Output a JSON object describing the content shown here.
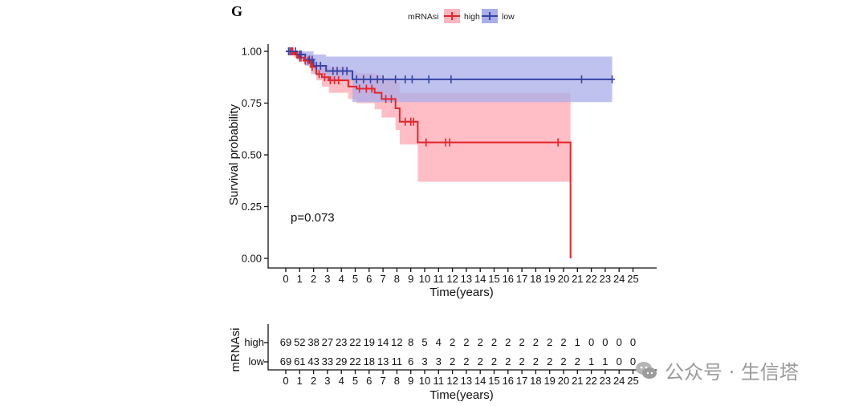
{
  "panel_label": "G",
  "chart_data": {
    "type": "line",
    "subtype": "kaplan-meier",
    "legend_title": "mRNAsi",
    "legend_position": "top-center",
    "xlabel": "Time(years)",
    "ylabel": "Survival probability",
    "xlim": [
      0,
      25
    ],
    "ylim": [
      0,
      1
    ],
    "x_ticks": [
      0,
      1,
      2,
      3,
      4,
      5,
      6,
      7,
      8,
      9,
      10,
      11,
      12,
      13,
      14,
      15,
      16,
      17,
      18,
      19,
      20,
      21,
      22,
      23,
      24,
      25
    ],
    "y_ticks": [
      "0.00",
      "0.25",
      "0.50",
      "0.75",
      "1.00"
    ],
    "annotation": "p=0.073",
    "series": [
      {
        "name": "high",
        "color": "#e3262b",
        "band_color": "#ffb6bf",
        "steps": [
          [
            0,
            1.0
          ],
          [
            0.6,
            0.985
          ],
          [
            0.9,
            0.97
          ],
          [
            1.3,
            0.955
          ],
          [
            1.8,
            0.925
          ],
          [
            2.2,
            0.89
          ],
          [
            2.6,
            0.875
          ],
          [
            3.1,
            0.86
          ],
          [
            4.5,
            0.83
          ],
          [
            5.1,
            0.82
          ],
          [
            6.4,
            0.8
          ],
          [
            6.9,
            0.77
          ],
          [
            7.9,
            0.725
          ],
          [
            8.2,
            0.66
          ],
          [
            9.5,
            0.56
          ],
          [
            20.5,
            0.0
          ]
        ],
        "end": 20.5,
        "censor_times": [
          0.3,
          0.5,
          0.8,
          1.0,
          1.1,
          1.4,
          1.6,
          1.9,
          2.4,
          2.8,
          3.2,
          3.5,
          3.8,
          5.3,
          5.8,
          6.2,
          7.2,
          7.6,
          8.6,
          9.0,
          9.2,
          10.1,
          11.5,
          11.8,
          19.6
        ],
        "ci": [
          [
            0,
            1.0,
            1.0
          ],
          [
            0.6,
            0.97,
            1.0
          ],
          [
            1.3,
            0.94,
            0.985
          ],
          [
            1.8,
            0.89,
            0.97
          ],
          [
            2.2,
            0.86,
            0.945
          ],
          [
            2.6,
            0.83,
            0.935
          ],
          [
            3.1,
            0.8,
            0.925
          ],
          [
            4.5,
            0.77,
            0.905
          ],
          [
            5.1,
            0.75,
            0.895
          ],
          [
            6.4,
            0.72,
            0.885
          ],
          [
            6.9,
            0.68,
            0.87
          ],
          [
            7.9,
            0.62,
            0.85
          ],
          [
            8.2,
            0.55,
            0.8
          ],
          [
            9.5,
            0.37,
            0.8
          ],
          [
            20.5,
            0.37,
            0.8
          ]
        ]
      },
      {
        "name": "low",
        "color": "#3545a5",
        "band_color": "#a9aee8",
        "steps": [
          [
            0,
            1.0
          ],
          [
            0.8,
            0.985
          ],
          [
            1.4,
            0.96
          ],
          [
            2.0,
            0.93
          ],
          [
            2.9,
            0.905
          ],
          [
            4.8,
            0.865
          ],
          [
            23.5,
            0.865
          ]
        ],
        "end": 23.5,
        "censor_times": [
          0.2,
          0.4,
          0.7,
          1.0,
          1.1,
          1.7,
          1.9,
          2.2,
          2.5,
          3.4,
          3.7,
          4.1,
          4.4,
          5.1,
          5.6,
          6.1,
          6.6,
          7.0,
          7.9,
          8.6,
          9.1,
          10.3,
          11.9,
          21.3,
          23.5
        ],
        "ci": [
          [
            0,
            1.0,
            1.0
          ],
          [
            0.8,
            0.96,
            1.0
          ],
          [
            1.4,
            0.93,
            1.0
          ],
          [
            2.0,
            0.89,
            0.985
          ],
          [
            2.9,
            0.86,
            0.975
          ],
          [
            4.8,
            0.755,
            0.975
          ],
          [
            23.5,
            0.755,
            0.975
          ]
        ]
      }
    ],
    "risk_table": {
      "ylabel": "mRNAsi",
      "xlabel": "Time(years)",
      "rows": [
        {
          "label": "high",
          "color": "#e3262b",
          "values": [
            "69",
            "52",
            "38",
            "27",
            "23",
            "22",
            "19",
            "14",
            "12",
            "8",
            "5",
            "4",
            "2",
            "2",
            "2",
            "2",
            "2",
            "2",
            "2",
            "2",
            "2",
            "1",
            "0",
            "0",
            "0",
            "0"
          ]
        },
        {
          "label": "low",
          "color": "#3545a5",
          "values": [
            "69",
            "61",
            "43",
            "33",
            "29",
            "22",
            "18",
            "13",
            "11",
            "6",
            "3",
            "3",
            "2",
            "2",
            "2",
            "2",
            "2",
            "2",
            "2",
            "2",
            "2",
            "2",
            "1",
            "1",
            "0",
            "0"
          ]
        }
      ]
    }
  },
  "watermark": {
    "text": "公众号 · 生信塔",
    "icon": "wechat-icon"
  }
}
